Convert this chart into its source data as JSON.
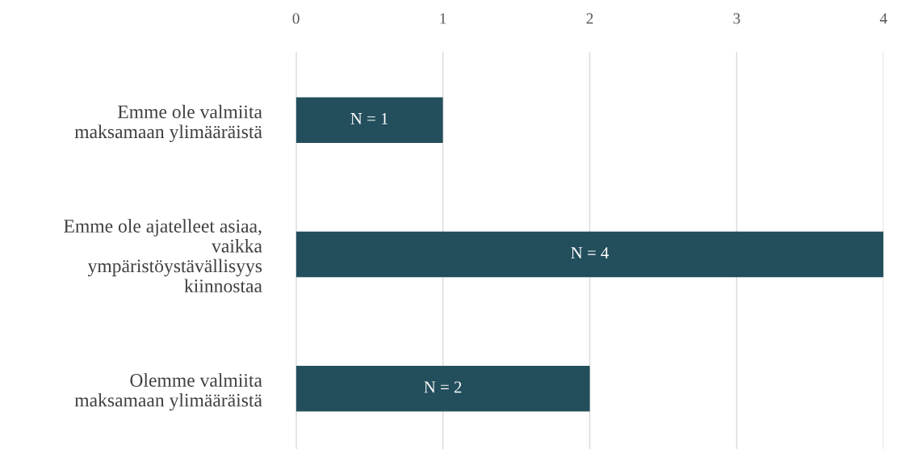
{
  "chart_data": {
    "type": "bar",
    "orientation": "horizontal",
    "categories": [
      "Emme ole valmiita\nmaksamaan ylimääräistä",
      "Emme ole ajatelleet asiaa,\nvaikka\nympäristöystävällisyys\nkiinnostaa",
      "Olemme valmiita\nmaksamaan ylimääräistä"
    ],
    "values": [
      1,
      4,
      2
    ],
    "value_labels": [
      "N = 1",
      "N = 4",
      "N = 2"
    ],
    "color": "#234e5c",
    "xlim": [
      0,
      4
    ],
    "xticks": [
      0,
      1,
      2,
      3,
      4
    ],
    "grid": "x"
  }
}
